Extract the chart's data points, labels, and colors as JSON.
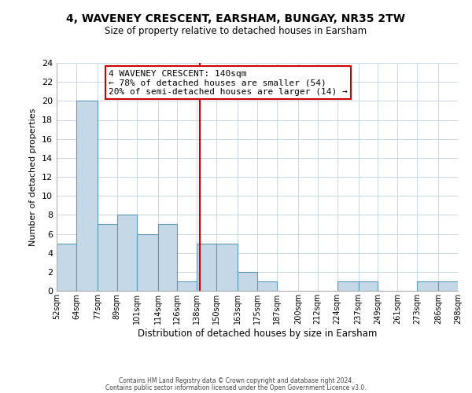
{
  "title": "4, WAVENEY CRESCENT, EARSHAM, BUNGAY, NR35 2TW",
  "subtitle": "Size of property relative to detached houses in Earsham",
  "xlabel": "Distribution of detached houses by size in Earsham",
  "ylabel": "Number of detached properties",
  "bin_edges": [
    52,
    64,
    77,
    89,
    101,
    114,
    126,
    138,
    150,
    163,
    175,
    187,
    200,
    212,
    224,
    237,
    249,
    261,
    273,
    286,
    298
  ],
  "bar_heights": [
    5,
    20,
    7,
    8,
    6,
    7,
    1,
    5,
    5,
    2,
    1,
    0,
    0,
    0,
    1,
    1,
    0,
    0,
    1,
    1
  ],
  "bar_color": "#c5d8e8",
  "bar_edge_color": "#5a9ab5",
  "property_line_x": 140,
  "property_line_color": "#cc0000",
  "annotation_title": "4 WAVENEY CRESCENT: 140sqm",
  "annotation_line1": "← 78% of detached houses are smaller (54)",
  "annotation_line2": "20% of semi-detached houses are larger (14) →",
  "annotation_box_edge_color": "#cc0000",
  "ylim": [
    0,
    24
  ],
  "yticks": [
    0,
    2,
    4,
    6,
    8,
    10,
    12,
    14,
    16,
    18,
    20,
    22,
    24
  ],
  "tick_labels": [
    "52sqm",
    "64sqm",
    "77sqm",
    "89sqm",
    "101sqm",
    "114sqm",
    "126sqm",
    "138sqm",
    "150sqm",
    "163sqm",
    "175sqm",
    "187sqm",
    "200sqm",
    "212sqm",
    "224sqm",
    "237sqm",
    "249sqm",
    "261sqm",
    "273sqm",
    "286sqm",
    "298sqm"
  ],
  "footer1": "Contains HM Land Registry data © Crown copyright and database right 2024.",
  "footer2": "Contains public sector information licensed under the Open Government Licence v3.0.",
  "background_color": "#ffffff",
  "grid_color": "#c8d8e8"
}
